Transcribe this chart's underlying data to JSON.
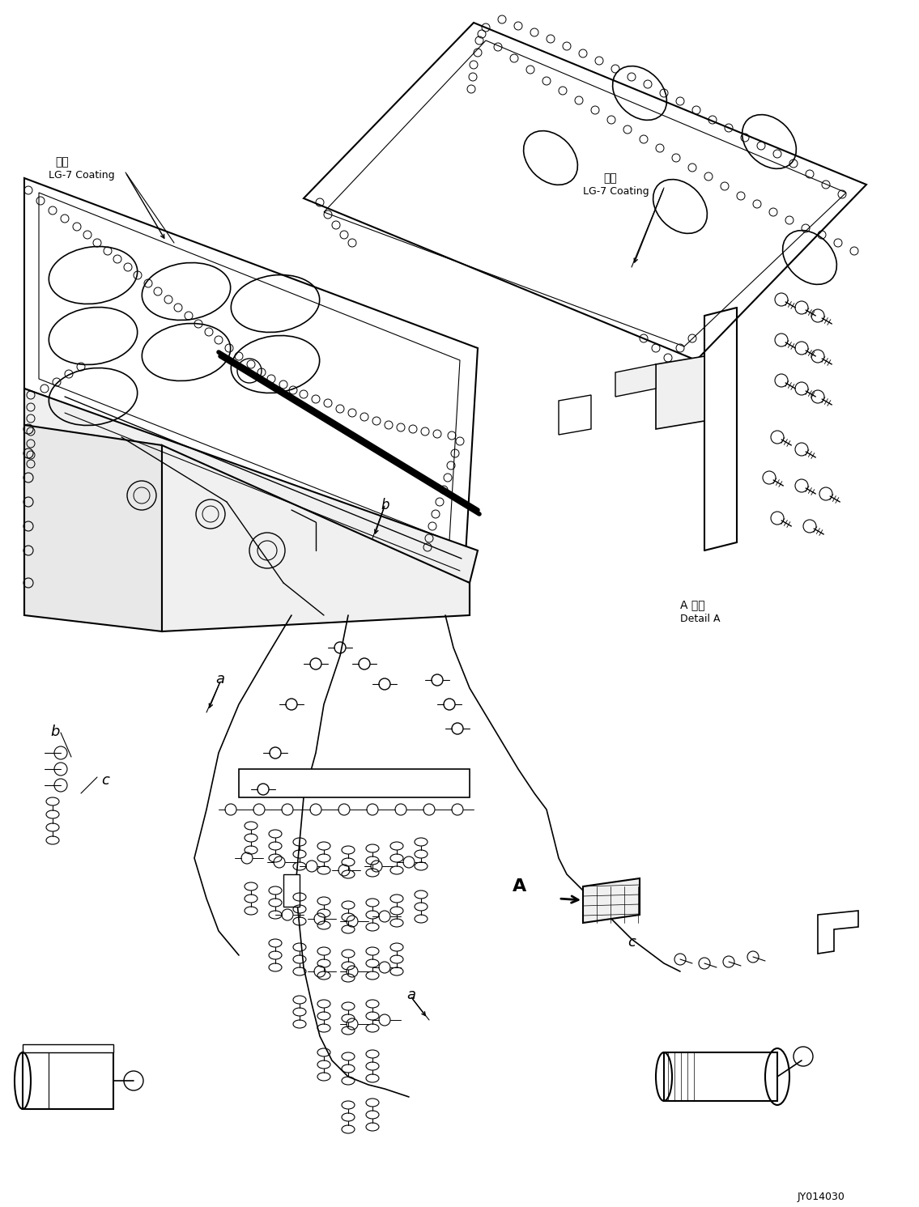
{
  "bg": "#ffffff",
  "lc": "#000000",
  "fig_w": 11.35,
  "fig_h": 14.91,
  "dpi": 100,
  "watermark": "JY014030",
  "label_lg7_left": "塗布\nLG-7 Coating",
  "label_lg7_right": "塗布\nLG-7 Coating",
  "label_detail": "A 詳細\nDetail A"
}
